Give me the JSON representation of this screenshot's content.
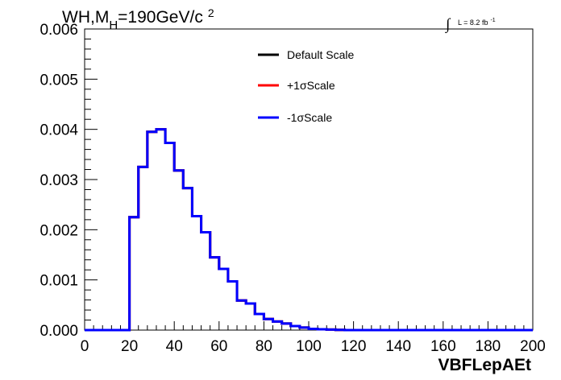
{
  "chart_data": {
    "type": "line",
    "title_parts": {
      "main": "WH,M",
      "sub": "H",
      "rest": "=190GeV/c",
      "sup": "2"
    },
    "lumi": {
      "integral": "∫",
      "text": "L = 8.2 fb",
      "sup": "-1"
    },
    "xlabel": "VBFLepAEt",
    "ylabel": "",
    "xlim": [
      0,
      200
    ],
    "ylim": [
      0,
      0.006
    ],
    "x_ticks": [
      0,
      20,
      40,
      60,
      80,
      100,
      120,
      140,
      160,
      180,
      200
    ],
    "x_tick_labels": [
      "0",
      "20",
      "40",
      "60",
      "80",
      "100",
      "120",
      "140",
      "160",
      "180",
      "200"
    ],
    "y_ticks": [
      0,
      0.001,
      0.002,
      0.003,
      0.004,
      0.005,
      0.006
    ],
    "y_tick_labels": [
      "0.000",
      "0.001",
      "0.002",
      "0.003",
      "0.004",
      "0.005",
      "0.006"
    ],
    "bin_edges": [
      0,
      4,
      8,
      12,
      16,
      20,
      24,
      28,
      32,
      36,
      40,
      44,
      48,
      52,
      56,
      60,
      64,
      68,
      72,
      76,
      80,
      84,
      88,
      92,
      96,
      100,
      104,
      108,
      112,
      116,
      120,
      124,
      128,
      132,
      136,
      140,
      144,
      148,
      152,
      156,
      160,
      164,
      168,
      172,
      176,
      180,
      184,
      188,
      192,
      196,
      200
    ],
    "series": [
      {
        "name": "Default Scale",
        "color": "#000000",
        "values": [
          0,
          0,
          0,
          0,
          0,
          0.00225,
          0.00325,
          0.00395,
          0.004,
          0.00373,
          0.00318,
          0.00283,
          0.00227,
          0.00195,
          0.00145,
          0.00122,
          0.00097,
          0.00059,
          0.00053,
          0.00032,
          0.00022,
          0.00017,
          0.00013,
          8e-05,
          5e-05,
          2.5e-05,
          1.5e-05,
          1e-05,
          5e-06,
          0,
          0,
          0,
          0,
          0,
          0,
          0,
          0,
          0,
          0,
          0,
          0,
          0,
          0,
          0,
          0,
          0,
          0,
          0,
          0,
          0
        ]
      },
      {
        "name": "+1σScale",
        "color": "#ff0000",
        "values": [
          0,
          0,
          0,
          0,
          0,
          0.00225,
          0.00325,
          0.00395,
          0.004,
          0.00373,
          0.00318,
          0.00283,
          0.00227,
          0.00195,
          0.00145,
          0.00122,
          0.00097,
          0.00059,
          0.00053,
          0.00032,
          0.00022,
          0.00017,
          0.00013,
          8e-05,
          5e-05,
          2.5e-05,
          1.5e-05,
          1e-05,
          5e-06,
          0,
          0,
          0,
          0,
          0,
          0,
          0,
          0,
          0,
          0,
          0,
          0,
          0,
          0,
          0,
          0,
          0,
          0,
          0,
          0,
          0
        ]
      },
      {
        "name": "-1σScale",
        "color": "#0000ff",
        "values": [
          0,
          0,
          0,
          0,
          0,
          0.00225,
          0.00325,
          0.00395,
          0.004,
          0.00373,
          0.00318,
          0.00283,
          0.00227,
          0.00195,
          0.00145,
          0.00122,
          0.00097,
          0.00059,
          0.00053,
          0.00032,
          0.00022,
          0.00017,
          0.00013,
          8e-05,
          5e-05,
          2.5e-05,
          1.5e-05,
          1e-05,
          5e-06,
          0,
          0,
          0,
          0,
          0,
          0,
          0,
          0,
          0,
          0,
          0,
          0,
          0,
          0,
          0,
          0,
          0,
          0,
          0,
          0,
          0
        ]
      }
    ],
    "legend_position": "top-center",
    "grid": false
  }
}
